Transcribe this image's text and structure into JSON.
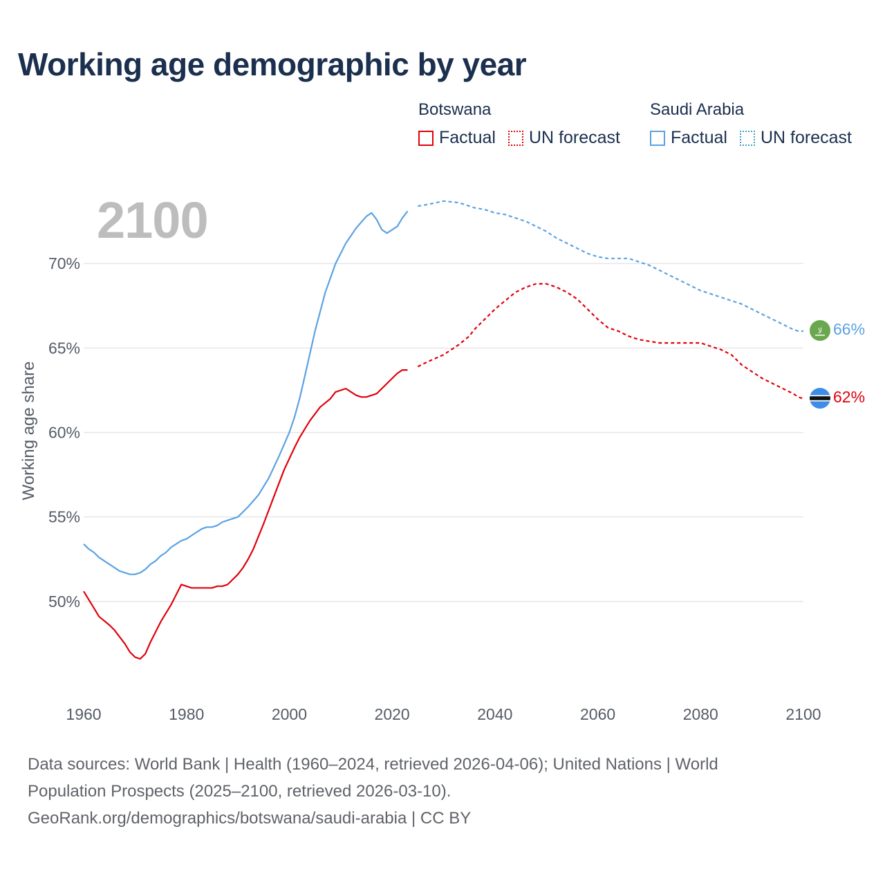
{
  "title": "Working age demographic by year",
  "current_year": "2100",
  "legend": {
    "botswana": {
      "name": "Botswana",
      "factual": "Factual",
      "forecast": "UN forecast"
    },
    "saudi": {
      "name": "Saudi Arabia",
      "factual": "Factual",
      "forecast": "UN forecast"
    }
  },
  "sources": {
    "line1": "Data sources: World Bank | Health (1960–2024, retrieved 2026-04-06); United Nations | World",
    "line2": "Population Prospects (2025–2100, retrieved 2026-03-10).",
    "line3": "GeoRank.org/demographics/botswana/saudi-arabia | CC BY"
  },
  "colors": {
    "botswana": "#e0000b",
    "saudi": "#5aa2e3",
    "grid": "#e6e6e6"
  },
  "chart_data": {
    "type": "line",
    "title": "Working age demographic by year",
    "xlabel": "",
    "ylabel": "Working age share",
    "xlim": [
      1960,
      2100
    ],
    "ylim": [
      45,
      75
    ],
    "x_ticks": [
      1960,
      1980,
      2000,
      2020,
      2040,
      2060,
      2080,
      2100
    ],
    "x_tick_labels": [
      "1960",
      "1980",
      "2000",
      "2020",
      "2040",
      "2060",
      "2080",
      "2100"
    ],
    "y_ticks": [
      50,
      55,
      60,
      65,
      70
    ],
    "y_tick_labels": [
      "50%",
      "55%",
      "60%",
      "65%",
      "70%"
    ],
    "factual_end_year": 2024,
    "series": [
      {
        "name": "Botswana",
        "end_label": "62%",
        "x": [
          1960,
          1962,
          1963,
          1965,
          1966,
          1968,
          1969,
          1970,
          1971,
          1972,
          1973,
          1975,
          1977,
          1979,
          1981,
          1983,
          1985,
          1986,
          1987,
          1988,
          1990,
          1991,
          1992,
          1993,
          1995,
          1997,
          1999,
          2001,
          2002,
          2004,
          2006,
          2008,
          2009,
          2011,
          2012,
          2013,
          2014,
          2015,
          2017,
          2019,
          2021,
          2022,
          2023,
          2025,
          2027,
          2030,
          2033,
          2035,
          2036,
          2038,
          2040,
          2042,
          2044,
          2046,
          2048,
          2050,
          2052,
          2054,
          2056,
          2058,
          2060,
          2062,
          2064,
          2066,
          2068,
          2070,
          2072,
          2074,
          2076,
          2078,
          2080,
          2082,
          2084,
          2086,
          2088,
          2090,
          2092,
          2094,
          2096,
          2098,
          2099,
          2100
        ],
        "values": [
          50.6,
          49.6,
          49.1,
          48.6,
          48.3,
          47.5,
          47.0,
          46.7,
          46.6,
          46.9,
          47.6,
          48.8,
          49.8,
          51.0,
          50.8,
          50.8,
          50.8,
          50.9,
          50.9,
          51.0,
          51.6,
          52.0,
          52.5,
          53.1,
          54.6,
          56.2,
          57.8,
          59.1,
          59.7,
          60.7,
          61.5,
          62.0,
          62.4,
          62.6,
          62.4,
          62.2,
          62.1,
          62.1,
          62.3,
          62.9,
          63.5,
          63.7,
          63.7,
          63.9,
          64.2,
          64.6,
          65.2,
          65.7,
          66.1,
          66.7,
          67.3,
          67.8,
          68.3,
          68.6,
          68.8,
          68.8,
          68.6,
          68.3,
          67.9,
          67.3,
          66.7,
          66.2,
          66.0,
          65.7,
          65.5,
          65.4,
          65.3,
          65.3,
          65.3,
          65.3,
          65.3,
          65.1,
          64.9,
          64.6,
          64.0,
          63.6,
          63.2,
          62.9,
          62.6,
          62.3,
          62.1,
          62.0
        ]
      },
      {
        "name": "Saudi Arabia",
        "end_label": "66%",
        "x": [
          1960,
          1961,
          1962,
          1963,
          1965,
          1967,
          1968,
          1969,
          1970,
          1971,
          1972,
          1973,
          1974,
          1975,
          1976,
          1977,
          1979,
          1980,
          1981,
          1983,
          1984,
          1985,
          1986,
          1987,
          1988,
          1990,
          1992,
          1994,
          1996,
          1998,
          2000,
          2001,
          2002,
          2003,
          2005,
          2007,
          2009,
          2011,
          2013,
          2015,
          2016,
          2017,
          2018,
          2019,
          2021,
          2022,
          2023,
          2025,
          2027,
          2030,
          2033,
          2035,
          2036,
          2038,
          2040,
          2042,
          2044,
          2046,
          2048,
          2050,
          2052,
          2054,
          2056,
          2058,
          2060,
          2062,
          2064,
          2066,
          2068,
          2070,
          2072,
          2074,
          2076,
          2078,
          2080,
          2082,
          2084,
          2086,
          2088,
          2090,
          2092,
          2094,
          2096,
          2098,
          2099,
          2100
        ],
        "values": [
          53.4,
          53.1,
          52.9,
          52.6,
          52.2,
          51.8,
          51.7,
          51.6,
          51.6,
          51.7,
          51.9,
          52.2,
          52.4,
          52.7,
          52.9,
          53.2,
          53.6,
          53.7,
          53.9,
          54.3,
          54.4,
          54.4,
          54.5,
          54.7,
          54.8,
          55.0,
          55.6,
          56.3,
          57.3,
          58.6,
          60.0,
          60.9,
          62.0,
          63.3,
          66.0,
          68.3,
          70.0,
          71.2,
          72.1,
          72.8,
          73.0,
          72.6,
          72.0,
          71.8,
          72.2,
          72.7,
          73.1,
          73.4,
          73.5,
          73.7,
          73.6,
          73.4,
          73.3,
          73.2,
          73.0,
          72.9,
          72.7,
          72.5,
          72.2,
          71.9,
          71.5,
          71.2,
          70.9,
          70.6,
          70.4,
          70.3,
          70.3,
          70.3,
          70.1,
          69.9,
          69.6,
          69.3,
          69.0,
          68.7,
          68.4,
          68.2,
          68.0,
          67.8,
          67.6,
          67.3,
          67.0,
          66.7,
          66.4,
          66.1,
          66.0,
          66.0
        ]
      }
    ]
  }
}
